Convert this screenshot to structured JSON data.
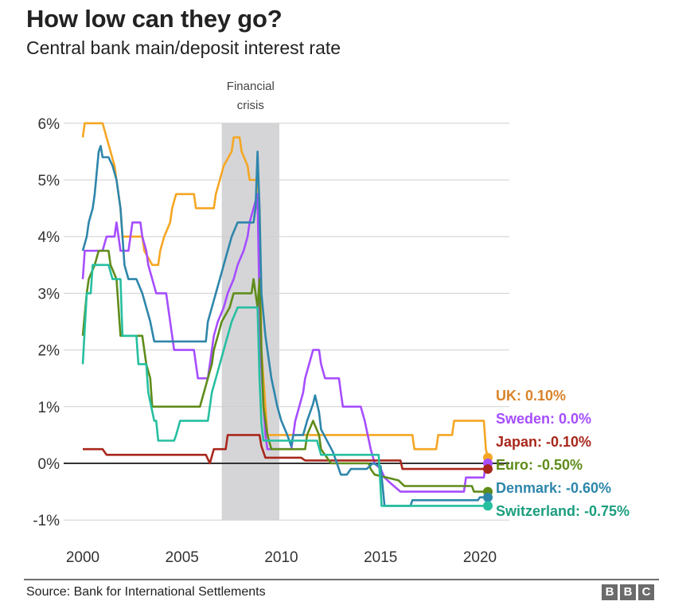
{
  "header": {
    "title": "How low can they go?",
    "subtitle": "Central bank main/deposit interest rate"
  },
  "footer": {
    "source": "Source: Bank for International Settlements",
    "logo_letters": [
      "B",
      "B",
      "C"
    ]
  },
  "chart_data": {
    "type": "line",
    "title": "How low can they go?",
    "subtitle": "Central bank main/deposit interest rate",
    "xlabel": "",
    "ylabel": "",
    "xlim": [
      2000,
      2020.5
    ],
    "ylim": [
      -1,
      6
    ],
    "x_ticks": [
      2000,
      2005,
      2010,
      2015,
      2020
    ],
    "x_tick_labels": [
      "2000",
      "2005",
      "2010",
      "2015",
      "2020"
    ],
    "y_ticks": [
      -1,
      0,
      1,
      2,
      3,
      4,
      5,
      6
    ],
    "y_tick_labels": [
      "-1%",
      "0%",
      "1%",
      "2%",
      "3%",
      "4%",
      "5%",
      "6%"
    ],
    "grid": true,
    "zero_line": true,
    "shaded_region": {
      "label_lines": [
        "Financial",
        "crisis"
      ],
      "x": [
        2007.0,
        2009.9
      ]
    },
    "legend_placement": "right-end-labels",
    "series": [
      {
        "name": "UK",
        "label": "UK: 0.10%",
        "color": "#f5a623",
        "label_color": "#d9832a",
        "end_value": 0.1,
        "points": [
          [
            2000,
            5.75
          ],
          [
            2000.1,
            6
          ],
          [
            2001.0,
            6
          ],
          [
            2001.2,
            5.75
          ],
          [
            2001.4,
            5.5
          ],
          [
            2001.6,
            5.25
          ],
          [
            2001.7,
            5.0
          ],
          [
            2001.8,
            4.75
          ],
          [
            2001.9,
            4.5
          ],
          [
            2002.0,
            4.0
          ],
          [
            2003.0,
            4.0
          ],
          [
            2003.1,
            3.75
          ],
          [
            2003.5,
            3.5
          ],
          [
            2003.8,
            3.5
          ],
          [
            2003.9,
            3.75
          ],
          [
            2004.1,
            4.0
          ],
          [
            2004.4,
            4.25
          ],
          [
            2004.5,
            4.5
          ],
          [
            2004.7,
            4.75
          ],
          [
            2005.6,
            4.75
          ],
          [
            2005.7,
            4.5
          ],
          [
            2006.6,
            4.5
          ],
          [
            2006.7,
            4.75
          ],
          [
            2006.9,
            5.0
          ],
          [
            2007.1,
            5.25
          ],
          [
            2007.5,
            5.5
          ],
          [
            2007.6,
            5.75
          ],
          [
            2007.9,
            5.75
          ],
          [
            2008.0,
            5.5
          ],
          [
            2008.3,
            5.25
          ],
          [
            2008.4,
            5.0
          ],
          [
            2008.8,
            5.0
          ],
          [
            2008.9,
            4.5
          ],
          [
            2009.0,
            2.0
          ],
          [
            2009.1,
            1.5
          ],
          [
            2009.2,
            1.0
          ],
          [
            2009.3,
            0.5
          ],
          [
            2016.6,
            0.5
          ],
          [
            2016.7,
            0.25
          ],
          [
            2017.8,
            0.25
          ],
          [
            2017.9,
            0.5
          ],
          [
            2018.6,
            0.5
          ],
          [
            2018.7,
            0.75
          ],
          [
            2020.2,
            0.75
          ],
          [
            2020.3,
            0.25
          ],
          [
            2020.4,
            0.1
          ]
        ]
      },
      {
        "name": "Sweden",
        "label": "Sweden: 0.0%",
        "color": "#a64dff",
        "label_color": "#a64dff",
        "end_value": 0.0,
        "points": [
          [
            2000,
            3.25
          ],
          [
            2000.1,
            3.75
          ],
          [
            2001.0,
            3.75
          ],
          [
            2001.2,
            4.0
          ],
          [
            2001.6,
            4.0
          ],
          [
            2001.7,
            4.25
          ],
          [
            2001.8,
            4.0
          ],
          [
            2001.9,
            3.75
          ],
          [
            2002.3,
            3.75
          ],
          [
            2002.4,
            4.0
          ],
          [
            2002.5,
            4.25
          ],
          [
            2002.9,
            4.25
          ],
          [
            2003.0,
            4.0
          ],
          [
            2003.2,
            3.75
          ],
          [
            2003.3,
            3.5
          ],
          [
            2003.5,
            3.25
          ],
          [
            2003.7,
            3.0
          ],
          [
            2004.2,
            3.0
          ],
          [
            2004.3,
            2.75
          ],
          [
            2004.4,
            2.5
          ],
          [
            2004.5,
            2.25
          ],
          [
            2004.6,
            2.0
          ],
          [
            2005.6,
            2.0
          ],
          [
            2005.7,
            1.75
          ],
          [
            2005.8,
            1.5
          ],
          [
            2006.3,
            1.5
          ],
          [
            2006.4,
            1.75
          ],
          [
            2006.5,
            2.0
          ],
          [
            2006.6,
            2.25
          ],
          [
            2006.8,
            2.5
          ],
          [
            2007.1,
            2.75
          ],
          [
            2007.3,
            3.0
          ],
          [
            2007.6,
            3.25
          ],
          [
            2007.8,
            3.5
          ],
          [
            2008.1,
            3.75
          ],
          [
            2008.3,
            4.0
          ],
          [
            2008.4,
            4.25
          ],
          [
            2008.6,
            4.5
          ],
          [
            2008.8,
            4.75
          ],
          [
            2008.85,
            3.75
          ],
          [
            2008.95,
            2.0
          ],
          [
            2009.1,
            1.0
          ],
          [
            2009.2,
            0.5
          ],
          [
            2009.3,
            0.25
          ],
          [
            2010.5,
            0.25
          ],
          [
            2010.6,
            0.5
          ],
          [
            2010.7,
            0.75
          ],
          [
            2010.9,
            1.0
          ],
          [
            2011.1,
            1.25
          ],
          [
            2011.2,
            1.5
          ],
          [
            2011.4,
            1.75
          ],
          [
            2011.6,
            2.0
          ],
          [
            2011.9,
            2.0
          ],
          [
            2012.0,
            1.75
          ],
          [
            2012.2,
            1.5
          ],
          [
            2012.9,
            1.5
          ],
          [
            2013.0,
            1.25
          ],
          [
            2013.1,
            1.0
          ],
          [
            2014.0,
            1.0
          ],
          [
            2014.2,
            0.75
          ],
          [
            2014.5,
            0.25
          ],
          [
            2014.7,
            0.0
          ],
          [
            2015.0,
            -0.1
          ],
          [
            2015.2,
            -0.25
          ],
          [
            2015.5,
            -0.35
          ],
          [
            2016.0,
            -0.5
          ],
          [
            2019.2,
            -0.5
          ],
          [
            2019.3,
            -0.25
          ],
          [
            2020.2,
            -0.25
          ],
          [
            2020.3,
            0.0
          ],
          [
            2020.4,
            0.0
          ]
        ]
      },
      {
        "name": "Japan",
        "label": "Japan: -0.10%",
        "color": "#a8271c",
        "label_color": "#a8271c",
        "end_value": -0.1,
        "points": [
          [
            2000,
            0.25
          ],
          [
            2001.0,
            0.25
          ],
          [
            2001.2,
            0.15
          ],
          [
            2006.2,
            0.15
          ],
          [
            2006.4,
            0.0
          ],
          [
            2006.6,
            0.25
          ],
          [
            2007.2,
            0.25
          ],
          [
            2007.3,
            0.5
          ],
          [
            2008.9,
            0.5
          ],
          [
            2009.0,
            0.3
          ],
          [
            2009.2,
            0.1
          ],
          [
            2011.0,
            0.1
          ],
          [
            2011.2,
            0.05
          ],
          [
            2016.0,
            0.05
          ],
          [
            2016.1,
            -0.1
          ],
          [
            2020.4,
            -0.1
          ]
        ]
      },
      {
        "name": "Euro",
        "label": "Euro: -0.50%",
        "color": "#5f8c1a",
        "label_color": "#5f8c1a",
        "end_value": -0.5,
        "points": [
          [
            2000,
            2.25
          ],
          [
            2000.2,
            3.0
          ],
          [
            2000.3,
            3.25
          ],
          [
            2000.6,
            3.5
          ],
          [
            2000.8,
            3.75
          ],
          [
            2001.3,
            3.75
          ],
          [
            2001.4,
            3.5
          ],
          [
            2001.7,
            3.25
          ],
          [
            2001.8,
            2.75
          ],
          [
            2001.9,
            2.25
          ],
          [
            2003.0,
            2.25
          ],
          [
            2003.2,
            1.75
          ],
          [
            2003.4,
            1.5
          ],
          [
            2003.5,
            1.0
          ],
          [
            2005.9,
            1.0
          ],
          [
            2006.1,
            1.25
          ],
          [
            2006.3,
            1.5
          ],
          [
            2006.5,
            1.75
          ],
          [
            2006.6,
            2.0
          ],
          [
            2006.8,
            2.25
          ],
          [
            2007.0,
            2.5
          ],
          [
            2007.4,
            2.75
          ],
          [
            2007.6,
            3.0
          ],
          [
            2008.5,
            3.0
          ],
          [
            2008.6,
            3.25
          ],
          [
            2008.7,
            3.0
          ],
          [
            2008.8,
            2.75
          ],
          [
            2008.9,
            3.25
          ],
          [
            2009.0,
            2.0
          ],
          [
            2009.1,
            1.0
          ],
          [
            2009.3,
            0.5
          ],
          [
            2009.5,
            0.25
          ],
          [
            2011.2,
            0.25
          ],
          [
            2011.3,
            0.5
          ],
          [
            2011.6,
            0.75
          ],
          [
            2011.9,
            0.5
          ],
          [
            2012.0,
            0.25
          ],
          [
            2012.5,
            0.0
          ],
          [
            2014.4,
            0.0
          ],
          [
            2014.5,
            -0.1
          ],
          [
            2014.7,
            -0.2
          ],
          [
            2015.9,
            -0.3
          ],
          [
            2016.2,
            -0.4
          ],
          [
            2019.6,
            -0.4
          ],
          [
            2019.7,
            -0.5
          ],
          [
            2020.4,
            -0.5
          ]
        ]
      },
      {
        "name": "Denmark",
        "label": "Denmark: -0.60%",
        "color": "#2e86ab",
        "label_color": "#2e86ab",
        "end_value": -0.6,
        "points": [
          [
            2000,
            3.75
          ],
          [
            2000.2,
            4.0
          ],
          [
            2000.3,
            4.25
          ],
          [
            2000.5,
            4.5
          ],
          [
            2000.6,
            4.75
          ],
          [
            2000.8,
            5.5
          ],
          [
            2000.9,
            5.6
          ],
          [
            2001.0,
            5.4
          ],
          [
            2001.3,
            5.4
          ],
          [
            2001.5,
            5.25
          ],
          [
            2001.7,
            5.0
          ],
          [
            2001.9,
            4.5
          ],
          [
            2002.0,
            4.0
          ],
          [
            2002.1,
            3.5
          ],
          [
            2002.3,
            3.25
          ],
          [
            2002.7,
            3.25
          ],
          [
            2003.0,
            3.0
          ],
          [
            2003.2,
            2.75
          ],
          [
            2003.4,
            2.5
          ],
          [
            2003.6,
            2.15
          ],
          [
            2006.2,
            2.15
          ],
          [
            2006.3,
            2.5
          ],
          [
            2006.5,
            2.75
          ],
          [
            2006.7,
            3.0
          ],
          [
            2006.9,
            3.25
          ],
          [
            2007.1,
            3.5
          ],
          [
            2007.3,
            3.75
          ],
          [
            2007.5,
            4.0
          ],
          [
            2007.8,
            4.25
          ],
          [
            2008.6,
            4.25
          ],
          [
            2008.7,
            4.5
          ],
          [
            2008.8,
            5.5
          ],
          [
            2008.9,
            4.5
          ],
          [
            2009.0,
            3.0
          ],
          [
            2009.2,
            2.25
          ],
          [
            2009.5,
            1.5
          ],
          [
            2009.8,
            1.0
          ],
          [
            2010.0,
            0.75
          ],
          [
            2010.3,
            0.5
          ],
          [
            2010.5,
            0.3
          ],
          [
            2010.6,
            0.5
          ],
          [
            2011.1,
            0.5
          ],
          [
            2011.3,
            0.75
          ],
          [
            2011.6,
            1.05
          ],
          [
            2011.7,
            1.2
          ],
          [
            2011.9,
            0.9
          ],
          [
            2012.0,
            0.6
          ],
          [
            2012.6,
            0.2
          ],
          [
            2012.8,
            0.0
          ],
          [
            2013.0,
            -0.2
          ],
          [
            2013.3,
            -0.2
          ],
          [
            2013.5,
            -0.1
          ],
          [
            2014.3,
            -0.1
          ],
          [
            2014.6,
            0.0
          ],
          [
            2015.0,
            -0.05
          ],
          [
            2015.2,
            -0.75
          ],
          [
            2016.5,
            -0.75
          ],
          [
            2016.6,
            -0.65
          ],
          [
            2019.9,
            -0.65
          ],
          [
            2020.0,
            -0.6
          ],
          [
            2020.4,
            -0.6
          ]
        ]
      },
      {
        "name": "Switzerland",
        "label": "Switzerland: -0.75%",
        "color": "#26bfa0",
        "label_color": "#1a9e7f",
        "end_value": -0.75,
        "points": [
          [
            2000,
            1.75
          ],
          [
            2000.2,
            3.0
          ],
          [
            2000.4,
            3.0
          ],
          [
            2000.5,
            3.5
          ],
          [
            2001.3,
            3.5
          ],
          [
            2001.5,
            3.25
          ],
          [
            2001.9,
            3.25
          ],
          [
            2002.0,
            2.25
          ],
          [
            2002.7,
            2.25
          ],
          [
            2002.8,
            1.75
          ],
          [
            2003.2,
            1.75
          ],
          [
            2003.3,
            1.25
          ],
          [
            2003.6,
            0.75
          ],
          [
            2003.7,
            0.75
          ],
          [
            2003.8,
            0.4
          ],
          [
            2004.6,
            0.4
          ],
          [
            2004.7,
            0.5
          ],
          [
            2004.9,
            0.75
          ],
          [
            2006.3,
            0.75
          ],
          [
            2006.4,
            1.0
          ],
          [
            2006.5,
            1.25
          ],
          [
            2006.7,
            1.5
          ],
          [
            2006.9,
            1.75
          ],
          [
            2007.1,
            2.0
          ],
          [
            2007.3,
            2.25
          ],
          [
            2007.5,
            2.5
          ],
          [
            2007.8,
            2.75
          ],
          [
            2008.8,
            2.75
          ],
          [
            2008.9,
            1.5
          ],
          [
            2009.0,
            0.7
          ],
          [
            2009.1,
            0.4
          ],
          [
            2011.8,
            0.4
          ],
          [
            2012.0,
            0.15
          ],
          [
            2014.9,
            0.15
          ],
          [
            2015.05,
            -0.75
          ],
          [
            2020.4,
            -0.75
          ]
        ]
      }
    ]
  }
}
